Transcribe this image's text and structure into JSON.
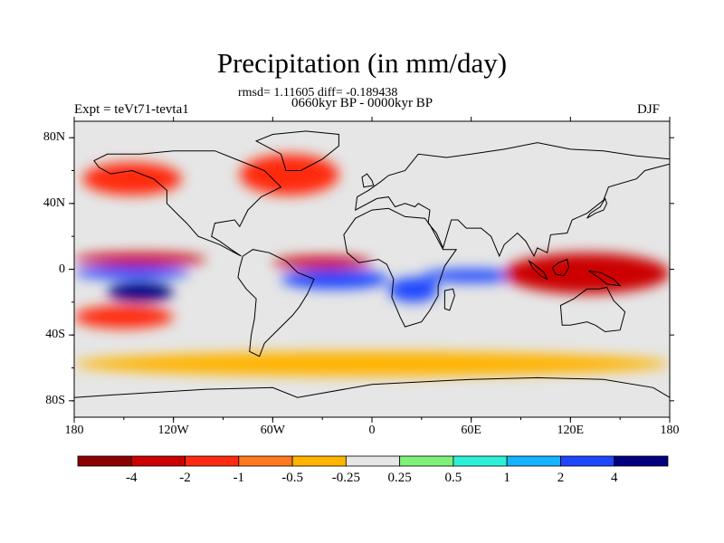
{
  "title": "Precipitation (in mm/day)",
  "stats_line": "rmsd= 1.11605 diff= -0.189438",
  "period_line": "0660kyr BP - 0000kyr BP",
  "experiment_label": "Expt = teVt71-tevta1",
  "season_label": "DJF",
  "chart_data": {
    "type": "heatmap",
    "map_type": "global precipitation difference (lat-lon contour map)",
    "x_range_deg": [
      -180,
      180
    ],
    "y_range_deg": [
      -90,
      90
    ],
    "x_ticks": [
      {
        "value": -180,
        "label": "180"
      },
      {
        "value": -120,
        "label": "120W"
      },
      {
        "value": -60,
        "label": "60W"
      },
      {
        "value": 0,
        "label": "0"
      },
      {
        "value": 60,
        "label": "60E"
      },
      {
        "value": 120,
        "label": "120E"
      },
      {
        "value": 180,
        "label": "180"
      }
    ],
    "y_ticks": [
      {
        "value": 80,
        "label": "80N"
      },
      {
        "value": 40,
        "label": "40N"
      },
      {
        "value": 0,
        "label": "0"
      },
      {
        "value": -40,
        "label": "40S"
      },
      {
        "value": -80,
        "label": "80S"
      }
    ],
    "colorbar": {
      "levels": [
        -4,
        -2,
        -1,
        -0.5,
        -0.25,
        0.25,
        0.5,
        1,
        2,
        4
      ],
      "level_labels": [
        "-4",
        "-2",
        "-1",
        "-0.5",
        "-0.25",
        "0.25",
        "0.5",
        "1",
        "2",
        "4"
      ],
      "colors": [
        "#8b0000",
        "#cc0000",
        "#ff2a10",
        "#ff7a1e",
        "#ffb400",
        "#e6e6e6",
        "#7ff07a",
        "#2ef0d8",
        "#14b4ff",
        "#1e46ff",
        "#00007f"
      ]
    },
    "features": [
      {
        "name": "Pacific ITCZ dry band",
        "lon": [
          -180,
          -100
        ],
        "lat": [
          2,
          10
        ],
        "value": -3
      },
      {
        "name": "Pacific wet band",
        "lon": [
          -180,
          -110
        ],
        "lat": [
          -6,
          2
        ],
        "value": 2
      },
      {
        "name": "South Pacific wet core",
        "lon": [
          -160,
          -120
        ],
        "lat": [
          -20,
          -8
        ],
        "value": 4
      },
      {
        "name": "South Pacific dry band",
        "lon": [
          -180,
          -120
        ],
        "lat": [
          -36,
          -22
        ],
        "value": -2
      },
      {
        "name": "Atlantic dry band",
        "lon": [
          -60,
          0
        ],
        "lat": [
          0,
          8
        ],
        "value": -3
      },
      {
        "name": "Atlantic / Brazil wet band",
        "lon": [
          -55,
          10
        ],
        "lat": [
          -12,
          0
        ],
        "value": 2
      },
      {
        "name": "Southern Africa wet zone",
        "lon": [
          10,
          40
        ],
        "lat": [
          -20,
          -5
        ],
        "value": 2
      },
      {
        "name": "Indian Ocean wet band",
        "lon": [
          30,
          90
        ],
        "lat": [
          -8,
          0
        ],
        "value": 2
      },
      {
        "name": "Maritime Continent dry core",
        "lon": [
          80,
          180
        ],
        "lat": [
          -15,
          10
        ],
        "value": -4
      },
      {
        "name": "North Atlantic dry",
        "lon": [
          -80,
          -20
        ],
        "lat": [
          45,
          70
        ],
        "value": -2
      },
      {
        "name": "North Pacific dry",
        "lon": [
          -175,
          -115
        ],
        "lat": [
          45,
          65
        ],
        "value": -2
      },
      {
        "name": "Southern Ocean dry belt",
        "lon": [
          -180,
          180
        ],
        "lat": [
          -65,
          -50
        ],
        "value": -0.4
      }
    ]
  }
}
